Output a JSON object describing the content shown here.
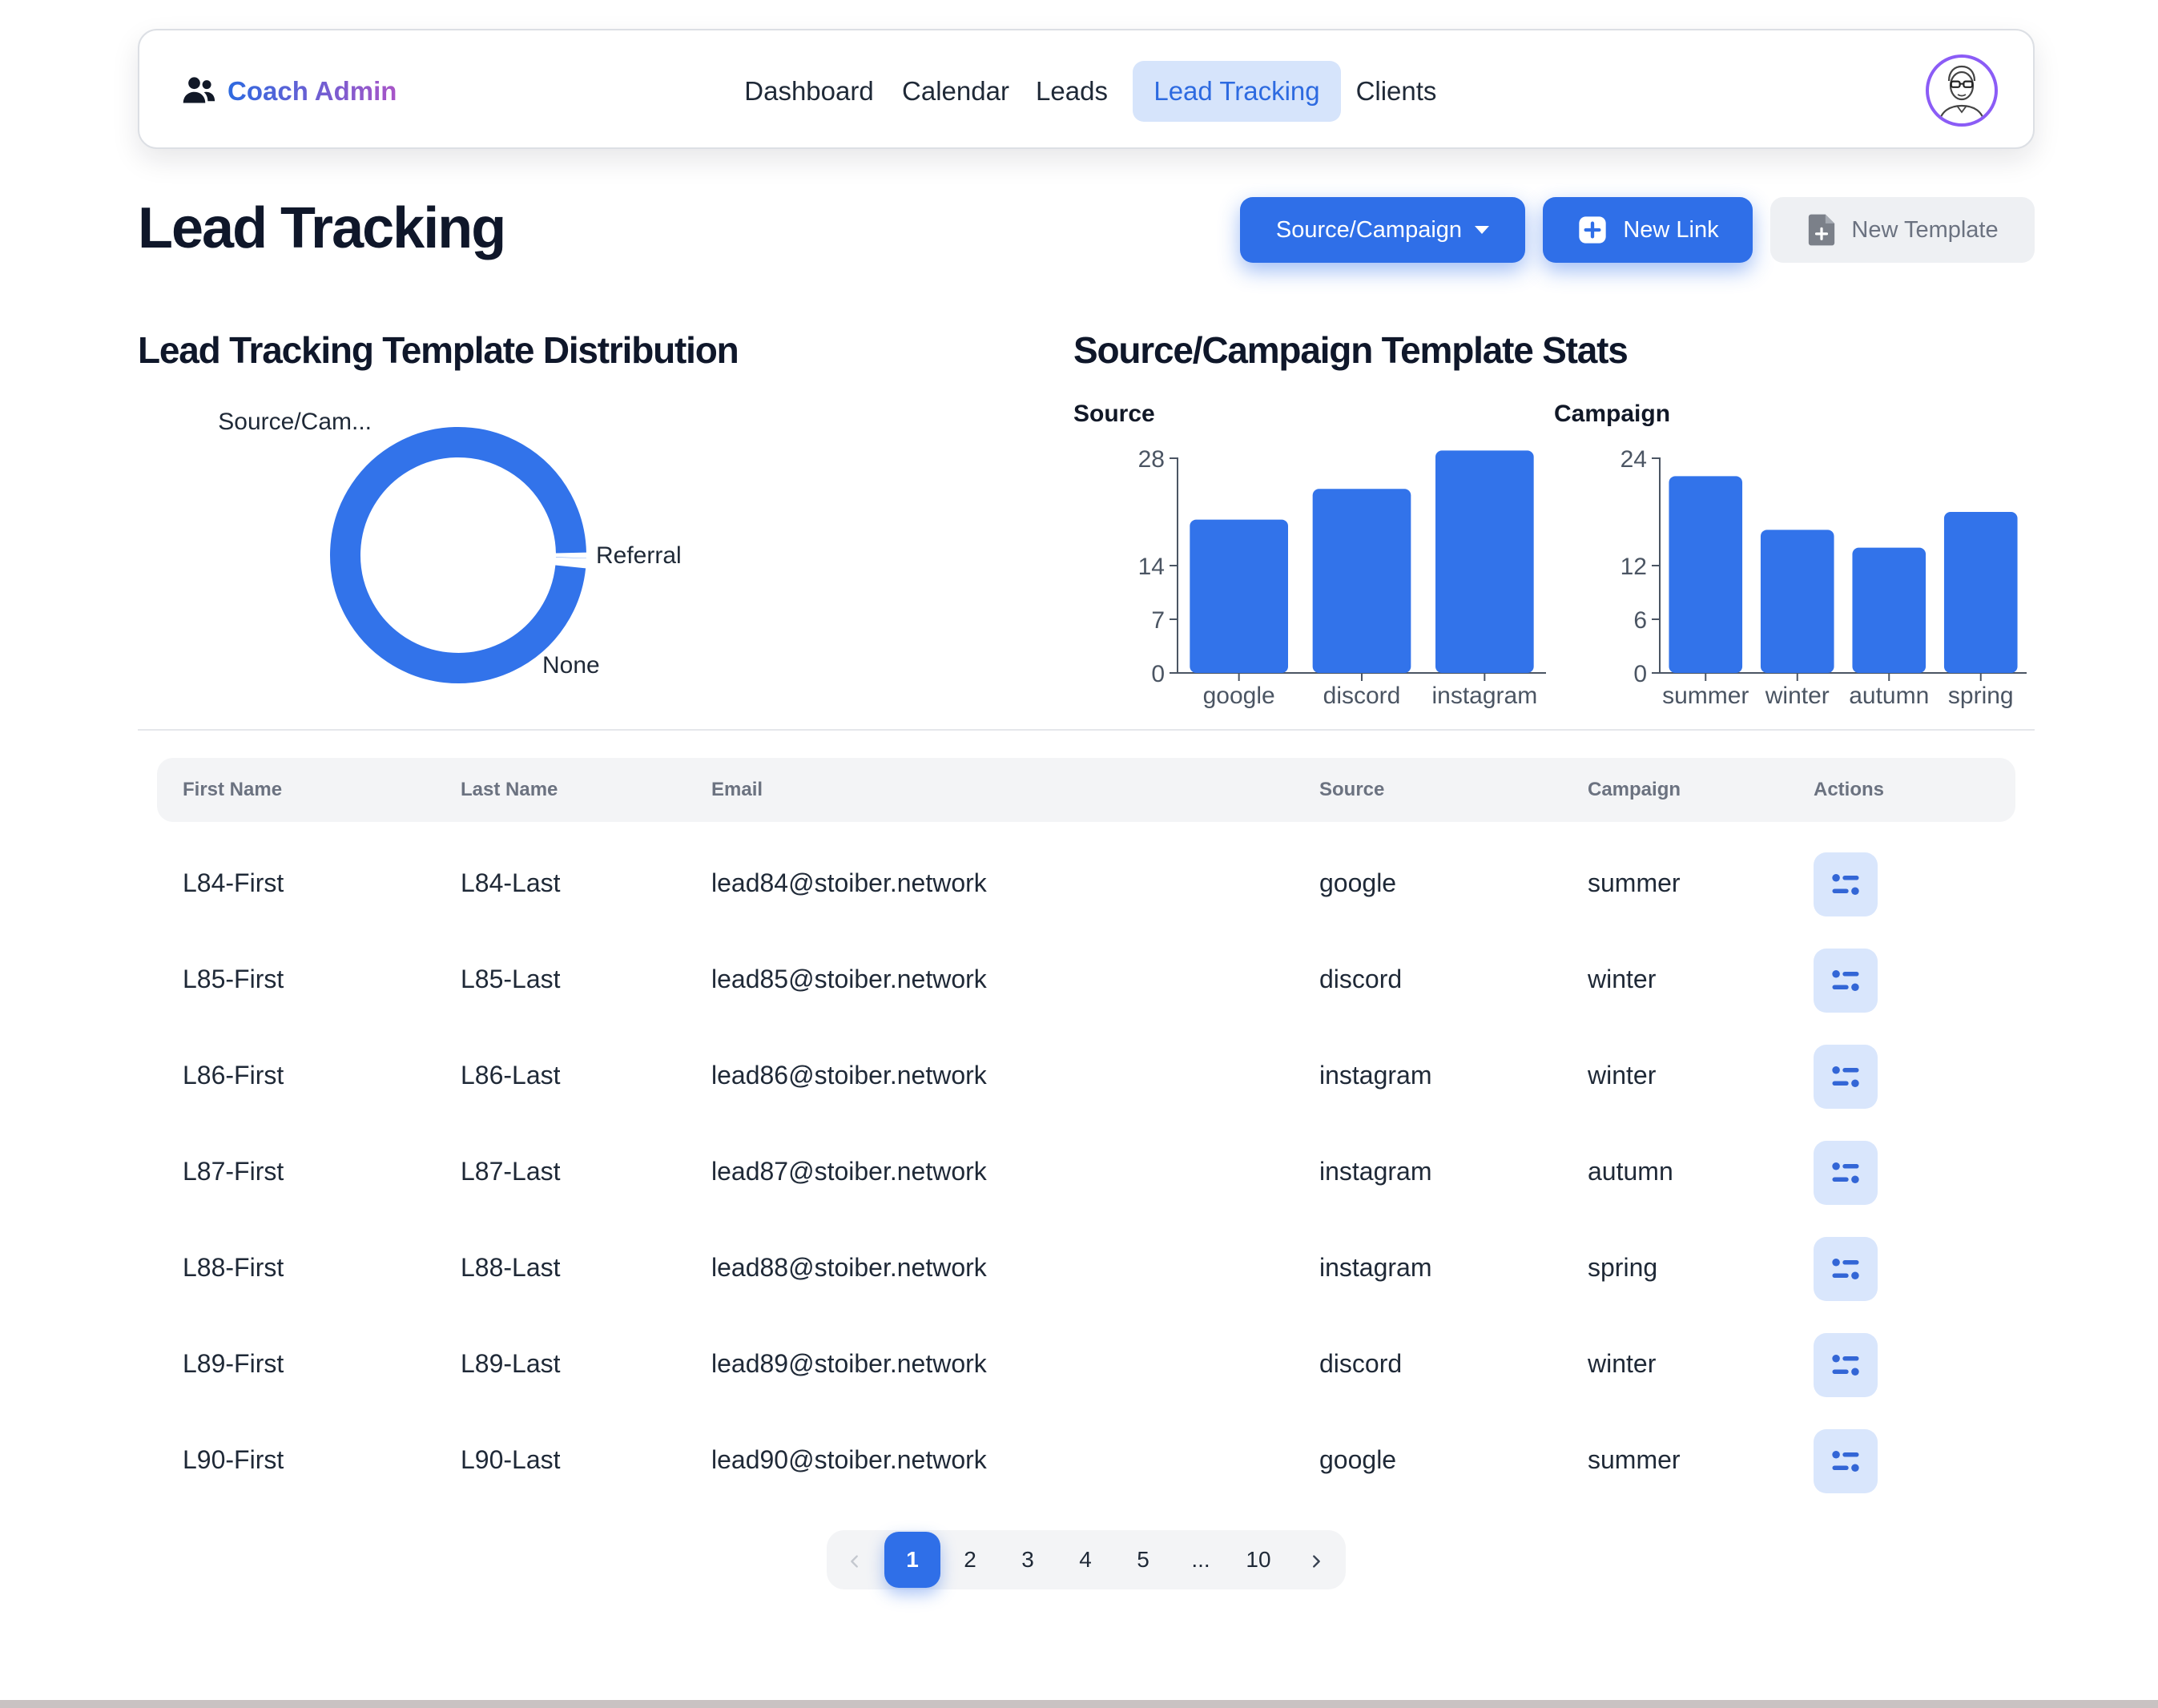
{
  "brand": {
    "name": "Coach Admin",
    "icon": "users-icon"
  },
  "nav": {
    "links": [
      {
        "label": "Dashboard",
        "active": false
      },
      {
        "label": "Calendar",
        "active": false
      },
      {
        "label": "Leads",
        "active": false
      },
      {
        "label": "Lead Tracking",
        "active": true
      },
      {
        "label": "Clients",
        "active": false
      }
    ],
    "avatar_icon": "user-avatar-icon"
  },
  "header": {
    "title": "Lead Tracking",
    "source_campaign_button": "Source/Campaign",
    "new_link_button": "New Link",
    "new_template_button": "New Template"
  },
  "distribution": {
    "title": "Lead Tracking Template Distribution"
  },
  "stats": {
    "title": "Source/Campaign Template Stats"
  },
  "chart_data": [
    {
      "type": "pie",
      "donut": true,
      "labels": [
        "Source/Cam...",
        "Referral",
        "None"
      ],
      "values": [
        0.7,
        0.6,
        98.7
      ]
    },
    {
      "type": "bar",
      "title": "Source",
      "categories": [
        "google",
        "discord",
        "instagram"
      ],
      "values": [
        20,
        24,
        29
      ],
      "yticks": [
        0,
        7,
        14,
        28
      ],
      "ylim": [
        0,
        28
      ],
      "color": "#3273ea"
    },
    {
      "type": "bar",
      "title": "Campaign",
      "categories": [
        "summer",
        "winter",
        "autumn",
        "spring"
      ],
      "values": [
        22,
        16,
        14,
        18
      ],
      "yticks": [
        0,
        6,
        12,
        24
      ],
      "ylim": [
        0,
        24
      ],
      "color": "#3273ea"
    }
  ],
  "table": {
    "columns": [
      "First Name",
      "Last Name",
      "Email",
      "Source",
      "Campaign",
      "Actions"
    ],
    "rows": [
      [
        "L84-First",
        "L84-Last",
        "lead84@stoiber.network",
        "google",
        "summer"
      ],
      [
        "L85-First",
        "L85-Last",
        "lead85@stoiber.network",
        "discord",
        "winter"
      ],
      [
        "L86-First",
        "L86-Last",
        "lead86@stoiber.network",
        "instagram",
        "winter"
      ],
      [
        "L87-First",
        "L87-Last",
        "lead87@stoiber.network",
        "instagram",
        "autumn"
      ],
      [
        "L88-First",
        "L88-Last",
        "lead88@stoiber.network",
        "instagram",
        "spring"
      ],
      [
        "L89-First",
        "L89-Last",
        "lead89@stoiber.network",
        "discord",
        "winter"
      ],
      [
        "L90-First",
        "L90-Last",
        "lead90@stoiber.network",
        "google",
        "summer"
      ]
    ],
    "action_icon": "sliders-icon"
  },
  "pagination": {
    "prev_icon": "chevron-left-icon",
    "pages": [
      "1",
      "2",
      "3",
      "4",
      "5",
      "...",
      "10"
    ],
    "current": "1",
    "next_icon": "chevron-right-icon"
  }
}
